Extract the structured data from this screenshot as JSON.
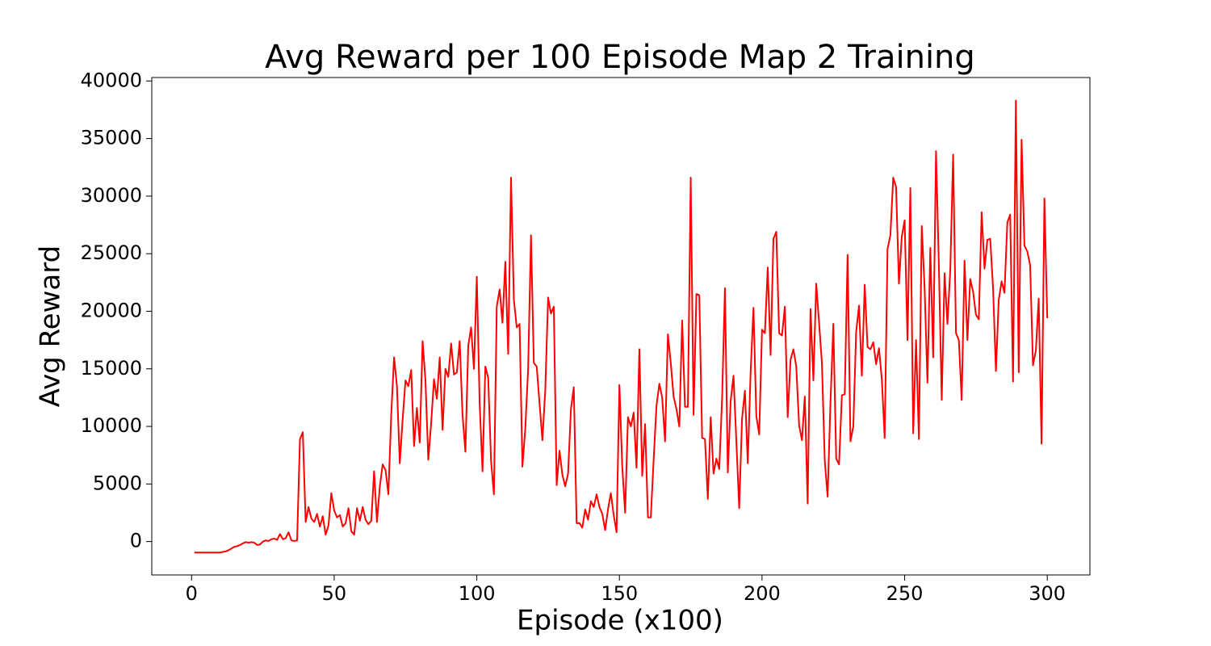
{
  "chart_data": {
    "type": "line",
    "title": "Avg Reward per 100 Episode Map 2 Training",
    "x_label": "Episode (x100)",
    "y_label": "Avg Reward",
    "color": "#ff0000",
    "xlim": [
      -13.95,
      314.95
    ],
    "ylim": [
      -2900,
      40300
    ],
    "xticks": [
      0,
      50,
      100,
      150,
      200,
      250,
      300
    ],
    "yticks": [
      0,
      5000,
      10000,
      15000,
      20000,
      25000,
      30000,
      35000,
      40000
    ],
    "grid": false,
    "x": [
      1,
      2,
      3,
      4,
      5,
      6,
      7,
      8,
      9,
      10,
      11,
      12,
      13,
      14,
      15,
      16,
      17,
      18,
      19,
      20,
      21,
      22,
      23,
      24,
      25,
      26,
      27,
      28,
      29,
      30,
      31,
      32,
      33,
      34,
      35,
      36,
      37,
      38,
      39,
      40,
      41,
      42,
      43,
      44,
      45,
      46,
      47,
      48,
      49,
      50,
      51,
      52,
      53,
      54,
      55,
      56,
      57,
      58,
      59,
      60,
      61,
      62,
      63,
      64,
      65,
      66,
      67,
      68,
      69,
      70,
      71,
      72,
      73,
      74,
      75,
      76,
      77,
      78,
      79,
      80,
      81,
      82,
      83,
      84,
      85,
      86,
      87,
      88,
      89,
      90,
      91,
      92,
      93,
      94,
      95,
      96,
      97,
      98,
      99,
      100,
      101,
      102,
      103,
      104,
      105,
      106,
      107,
      108,
      109,
      110,
      111,
      112,
      113,
      114,
      115,
      116,
      117,
      118,
      119,
      120,
      121,
      122,
      123,
      124,
      125,
      126,
      127,
      128,
      129,
      130,
      131,
      132,
      133,
      134,
      135,
      136,
      137,
      138,
      139,
      140,
      141,
      142,
      143,
      144,
      145,
      146,
      147,
      148,
      149,
      150,
      151,
      152,
      153,
      154,
      155,
      156,
      157,
      158,
      159,
      160,
      161,
      162,
      163,
      164,
      165,
      166,
      167,
      168,
      169,
      170,
      171,
      172,
      173,
      174,
      175,
      176,
      177,
      178,
      179,
      180,
      181,
      182,
      183,
      184,
      185,
      186,
      187,
      188,
      189,
      190,
      191,
      192,
      193,
      194,
      195,
      196,
      197,
      198,
      199,
      200,
      201,
      202,
      203,
      204,
      205,
      206,
      207,
      208,
      209,
      210,
      211,
      212,
      213,
      214,
      215,
      216,
      217,
      218,
      219,
      220,
      221,
      222,
      223,
      224,
      225,
      226,
      227,
      228,
      229,
      230,
      231,
      232,
      233,
      234,
      235,
      236,
      237,
      238,
      239,
      240,
      241,
      242,
      243,
      244,
      245,
      246,
      247,
      248,
      249,
      250,
      251,
      252,
      253,
      254,
      255,
      256,
      257,
      258,
      259,
      260,
      261,
      262,
      263,
      264,
      265,
      266,
      267,
      268,
      269,
      270,
      271,
      272,
      273,
      274,
      275,
      276,
      277,
      278,
      279,
      280,
      281,
      282,
      283,
      284,
      285,
      286,
      287,
      288,
      289,
      290,
      291,
      292,
      293,
      294,
      295,
      296,
      297,
      298,
      299,
      300
    ],
    "values": [
      -950,
      -950,
      -950,
      -950,
      -950,
      -950,
      -950,
      -950,
      -950,
      -950,
      -900,
      -850,
      -750,
      -600,
      -450,
      -400,
      -300,
      -150,
      -50,
      -100,
      -50,
      -100,
      -300,
      -250,
      0,
      100,
      50,
      200,
      250,
      150,
      650,
      200,
      300,
      800,
      100,
      50,
      100,
      8900,
      9500,
      1700,
      3000,
      2000,
      1700,
      2400,
      1300,
      2200,
      600,
      1400,
      4200,
      2700,
      2100,
      2300,
      1300,
      1600,
      2900,
      900,
      600,
      2900,
      1800,
      3000,
      1900,
      1500,
      1800,
      6100,
      1700,
      4800,
      6700,
      6200,
      4100,
      11000,
      16000,
      13500,
      6800,
      10600,
      14000,
      13500,
      14900,
      8300,
      11600,
      8600,
      17400,
      14000,
      7100,
      10300,
      14100,
      12400,
      16000,
      9700,
      15000,
      14300,
      17200,
      14500,
      14700,
      17400,
      11000,
      7800,
      17000,
      18600,
      15000,
      23000,
      12000,
      6100,
      15200,
      14200,
      7000,
      4100,
      20400,
      21900,
      19000,
      24300,
      16300,
      31600,
      21000,
      18600,
      18900,
      6500,
      9800,
      15000,
      26600,
      15500,
      15200,
      12000,
      8800,
      13100,
      21200,
      19800,
      20400,
      4900,
      7900,
      5800,
      4800,
      5900,
      11500,
      13400,
      1600,
      1600,
      1200,
      2800,
      1900,
      3500,
      3000,
      4100,
      3000,
      2400,
      1000,
      2800,
      4200,
      2300,
      800,
      13600,
      6500,
      2500,
      10800,
      10000,
      11200,
      6400,
      16700,
      5700,
      10200,
      2100,
      2100,
      7100,
      11800,
      13700,
      12500,
      8700,
      18000,
      15500,
      12600,
      11500,
      10000,
      19200,
      11700,
      11700,
      31600,
      11000,
      21500,
      21400,
      9000,
      8900,
      3700,
      10800,
      5900,
      7200,
      6300,
      12400,
      22000,
      6000,
      12200,
      14400,
      8700,
      2900,
      10700,
      13100,
      6800,
      14700,
      20300,
      10900,
      9300,
      18400,
      18100,
      23800,
      16200,
      26300,
      26900,
      18100,
      17900,
      20400,
      10800,
      15800,
      16700,
      15200,
      10100,
      8800,
      12600,
      3300,
      20200,
      14000,
      22400,
      19000,
      15500,
      7000,
      3900,
      12100,
      18900,
      7200,
      6700,
      12700,
      12800,
      24900,
      8700,
      10000,
      18200,
      20500,
      14400,
      22300,
      16900,
      16700,
      17300,
      15400,
      16800,
      14100,
      9000,
      25400,
      26600,
      31600,
      30800,
      22400,
      26500,
      27900,
      17500,
      30700,
      9400,
      17500,
      8900,
      27400,
      22000,
      13800,
      25500,
      16000,
      33900,
      24000,
      12300,
      23300,
      18900,
      23600,
      33600,
      18100,
      17500,
      12300,
      24400,
      17500,
      22800,
      21700,
      19700,
      19300,
      28600,
      23700,
      26200,
      26300,
      22000,
      14800,
      21000,
      22600,
      21600,
      27700,
      28400,
      13900,
      38300,
      14700,
      34900,
      25700,
      25200,
      24000,
      15300,
      16600,
      21100,
      8500,
      29800,
      19400
    ]
  }
}
